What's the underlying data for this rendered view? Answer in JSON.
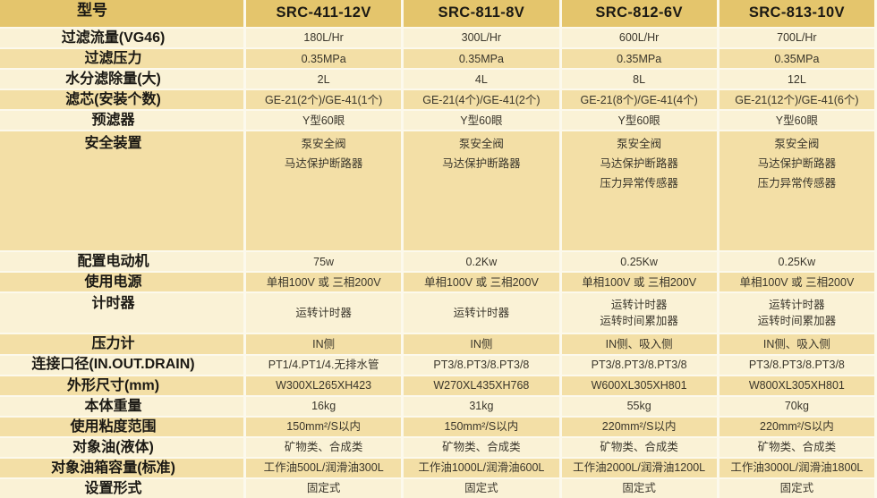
{
  "colors": {
    "header_gold": "#e4c56c",
    "row_light": "#faf2d6",
    "row_dark": "#f3dfa6",
    "separator_line": "#fcf9ec",
    "label_text": "#1a1813",
    "data_text": "#3a362b"
  },
  "table": {
    "header": {
      "label_segments": [
        "型",
        "号"
      ],
      "models": [
        "SRC-411-12V",
        "SRC-811-8V",
        "SRC-812-6V",
        "SRC-813-10V"
      ]
    },
    "rows": [
      {
        "name": "filtration-flow",
        "label_segments": [
          "过",
          "滤",
          "流",
          "量(VG46)"
        ],
        "cells": [
          [
            "180L/Hr"
          ],
          [
            "300L/Hr"
          ],
          [
            "600L/Hr"
          ],
          [
            "700L/Hr"
          ]
        ],
        "size": "normal"
      },
      {
        "name": "filtration-pressure",
        "label_segments": [
          "过",
          "滤",
          "压",
          "力"
        ],
        "cells": [
          [
            "0.35MPa"
          ],
          [
            "0.35MPa"
          ],
          [
            "0.35MPa"
          ],
          [
            "0.35MPa"
          ]
        ],
        "size": "normal"
      },
      {
        "name": "water-removal-capacity",
        "label_segments": [
          "水",
          "分",
          "滤",
          "除",
          "量(",
          "大",
          ")"
        ],
        "cells": [
          [
            "2L"
          ],
          [
            "4L"
          ],
          [
            "8L"
          ],
          [
            "12L"
          ]
        ],
        "size": "normal"
      },
      {
        "name": "filter-element-count",
        "label_segments": [
          "滤",
          "芯(安装个数)"
        ],
        "cells": [
          [
            "GE-21(2个)/GE-41(1个)"
          ],
          [
            "GE-21(4个)/GE-41(2个)"
          ],
          [
            "GE-21(8个)/GE-41(4个)"
          ],
          [
            "GE-21(12个)/GE-41(6个)"
          ]
        ],
        "size": "normal"
      },
      {
        "name": "pre-filter",
        "label_segments": [
          "预",
          "滤",
          "器"
        ],
        "cells": [
          [
            "Y型60眼"
          ],
          [
            "Y型60眼"
          ],
          [
            "Y型60眼"
          ],
          [
            "Y型60眼"
          ]
        ],
        "size": "normal"
      },
      {
        "name": "safety-devices",
        "label_segments": [
          "安",
          "全",
          "装",
          "置"
        ],
        "cells": [
          [
            "泵安全阀",
            "马达保护断路器"
          ],
          [
            "泵安全阀",
            "马达保护断路器"
          ],
          [
            "泵安全阀",
            "马达保护断路器",
            "压力异常传感器"
          ],
          [
            "泵安全阀",
            "马达保护断路器",
            "压力异常传感器"
          ]
        ],
        "size": "tall"
      },
      {
        "name": "equipped-motor",
        "label_segments": [
          "配",
          "置",
          "电",
          "动",
          "机"
        ],
        "cells": [
          [
            "75w"
          ],
          [
            "0.2Kw"
          ],
          [
            "0.25Kw"
          ],
          [
            "0.25Kw"
          ]
        ],
        "size": "normal"
      },
      {
        "name": "power-supply",
        "label_segments": [
          "使",
          "用",
          "电",
          "源"
        ],
        "cells": [
          [
            "单相100V 或 三相200V"
          ],
          [
            "单相100V 或 三相200V"
          ],
          [
            "单相100V 或 三相200V"
          ],
          [
            "单相100V 或 三相200V"
          ]
        ],
        "size": "normal"
      },
      {
        "name": "timer",
        "label_segments": [
          "计",
          "时",
          "器"
        ],
        "cells": [
          [
            "运转计时器"
          ],
          [
            "运转计时器"
          ],
          [
            "运转计时器",
            "运转时间累加器"
          ],
          [
            "运转计时器",
            "运转时间累加器"
          ]
        ],
        "size": "double"
      },
      {
        "name": "pressure-gauge",
        "label_segments": [
          "压",
          "力",
          "计"
        ],
        "cells": [
          [
            "IN侧"
          ],
          [
            "IN侧"
          ],
          [
            "IN侧、吸入侧"
          ],
          [
            "IN侧、吸入侧"
          ]
        ],
        "size": "normal"
      },
      {
        "name": "connection-diameter",
        "label_segments": [
          "连接口径(IN.OUT.DRAIN)"
        ],
        "cells": [
          [
            "PT1/4.PT1/4.无排水管"
          ],
          [
            "PT3/8.PT3/8.PT3/8"
          ],
          [
            "PT3/8.PT3/8.PT3/8"
          ],
          [
            "PT3/8.PT3/8.PT3/8"
          ]
        ],
        "size": "normal"
      },
      {
        "name": "outer-dimensions",
        "label_segments": [
          "外",
          "形",
          "尺",
          "寸(mm)"
        ],
        "cells": [
          [
            "W300XL265XH423"
          ],
          [
            "W270XL435XH768"
          ],
          [
            "W600XL305XH801"
          ],
          [
            "W800XL305XH801"
          ]
        ],
        "size": "normal"
      },
      {
        "name": "body-weight",
        "label_segments": [
          "本",
          "体",
          "重",
          "量"
        ],
        "cells": [
          [
            "16kg"
          ],
          [
            "31kg"
          ],
          [
            "55kg"
          ],
          [
            "70kg"
          ]
        ],
        "size": "normal"
      },
      {
        "name": "viscosity-range",
        "label_segments": [
          "使",
          "用",
          "粘",
          "度",
          "范",
          "围"
        ],
        "cells": [
          [
            "150mm²/S以内"
          ],
          [
            "150mm²/S以内"
          ],
          [
            "220mm²/S以内"
          ],
          [
            "220mm²/S以内"
          ]
        ],
        "size": "normal"
      },
      {
        "name": "target-oil",
        "label_segments": [
          "对",
          "象",
          "油(液体)"
        ],
        "cells": [
          [
            "矿物类、合成类"
          ],
          [
            "矿物类、合成类"
          ],
          [
            "矿物类、合成类"
          ],
          [
            "矿物类、合成类"
          ]
        ],
        "size": "normal"
      },
      {
        "name": "target-tank-capacity",
        "label_segments": [
          "对",
          "象",
          "油",
          "箱",
          "容",
          "量",
          "(",
          "标",
          "准",
          ")"
        ],
        "cells": [
          [
            "工作油500L/润滑油300L"
          ],
          [
            "工作油1000L/润滑油600L"
          ],
          [
            "工作油2000L/润滑油1200L"
          ],
          [
            "工作油3000L/润滑油1800L"
          ]
        ],
        "size": "normal"
      },
      {
        "name": "installation-type",
        "label_segments": [
          "设",
          "置",
          "形",
          "式"
        ],
        "cells": [
          [
            "固定式"
          ],
          [
            "固定式"
          ],
          [
            "固定式"
          ],
          [
            "固定式"
          ]
        ],
        "size": "normal"
      }
    ]
  }
}
